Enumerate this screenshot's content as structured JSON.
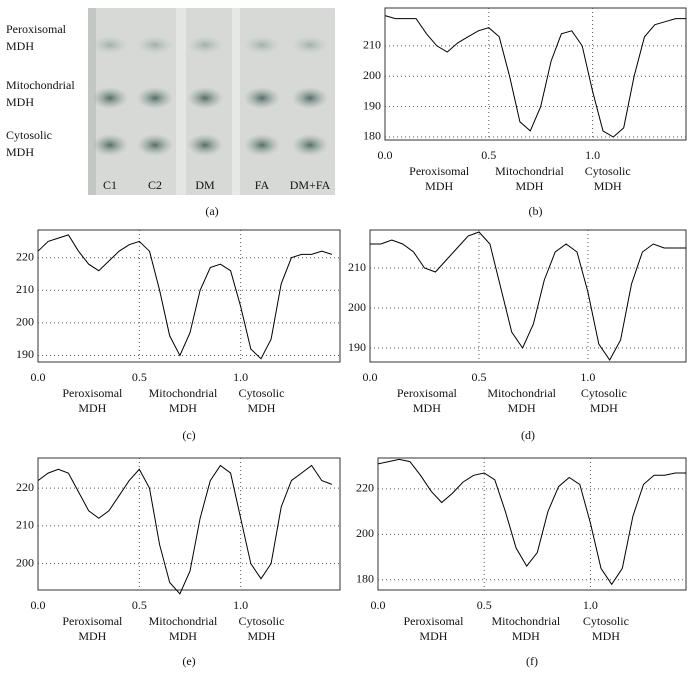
{
  "gel": {
    "row_labels": [
      [
        "Peroxisomal",
        "MDH"
      ],
      [
        "Mitochondrial",
        "MDH"
      ],
      [
        "Cytosolic",
        "MDH"
      ]
    ],
    "lanes": [
      "C1",
      "C2",
      "DM",
      "FA",
      "DM+FA"
    ],
    "caption": "(a)"
  },
  "chart_data": [
    {
      "type": "line",
      "caption": "(b)",
      "color": "#000000",
      "grid": true,
      "annotations": [
        [
          "Peroxisomal",
          "MDH"
        ],
        [
          "Mitochondrial",
          "MDH"
        ],
        [
          "Cytosolic",
          "MDH"
        ]
      ],
      "x": [
        0,
        0.05,
        0.1,
        0.15,
        0.2,
        0.25,
        0.3,
        0.35,
        0.4,
        0.45,
        0.5,
        0.55,
        0.6,
        0.65,
        0.7,
        0.75,
        0.8,
        0.85,
        0.9,
        0.95,
        1.0,
        1.05,
        1.1,
        1.15,
        1.2,
        1.25,
        1.3,
        1.35,
        1.4,
        1.45
      ],
      "values": [
        220,
        219,
        219,
        219,
        214,
        210,
        208,
        211,
        213,
        215,
        216,
        213,
        200,
        185,
        182,
        190,
        205,
        214,
        215,
        210,
        195,
        182,
        180,
        183,
        200,
        213,
        217,
        218,
        219,
        219
      ],
      "xlim": [
        0,
        1.45
      ],
      "ylim": [
        179,
        222.5
      ],
      "xticks": [
        {
          "value": 0,
          "label": "0.0"
        },
        0.5,
        {
          "value": 1,
          "label": "1.0"
        }
      ],
      "yticks": [
        180,
        190,
        200,
        210
      ]
    },
    {
      "type": "line",
      "caption": "(c)",
      "color": "#000000",
      "grid": true,
      "annotations": [
        [
          "Peroxisomal",
          "MDH"
        ],
        [
          "Mitochondrial",
          "MDH"
        ],
        [
          "Cytosolic",
          "MDH"
        ]
      ],
      "x": [
        0,
        0.05,
        0.1,
        0.15,
        0.2,
        0.25,
        0.3,
        0.35,
        0.4,
        0.45,
        0.5,
        0.55,
        0.6,
        0.65,
        0.7,
        0.75,
        0.8,
        0.85,
        0.9,
        0.95,
        1.0,
        1.05,
        1.1,
        1.15,
        1.2,
        1.25,
        1.3,
        1.35,
        1.4,
        1.45
      ],
      "values": [
        222,
        225,
        226,
        227,
        222,
        218,
        216,
        219,
        222,
        224,
        225,
        222,
        210,
        196,
        190,
        197,
        210,
        217,
        218,
        216,
        205,
        192,
        189,
        195,
        212,
        220,
        221,
        221,
        222,
        221
      ],
      "xlim": [
        0,
        1.49
      ],
      "ylim": [
        188,
        228.5
      ],
      "xticks": [
        {
          "value": 0,
          "label": "0.0"
        },
        0.5,
        {
          "value": 1,
          "label": "1.0"
        }
      ],
      "yticks": [
        190,
        200,
        210,
        220
      ]
    },
    {
      "type": "line",
      "caption": "(d)",
      "color": "#000000",
      "grid": true,
      "annotations": [
        [
          "Peroxisomal",
          "MDH"
        ],
        [
          "Mitochondrial",
          "MDH"
        ],
        [
          "Cytosolic",
          "MDH"
        ]
      ],
      "x": [
        0,
        0.05,
        0.1,
        0.15,
        0.2,
        0.25,
        0.3,
        0.35,
        0.4,
        0.45,
        0.5,
        0.55,
        0.6,
        0.65,
        0.7,
        0.75,
        0.8,
        0.85,
        0.9,
        0.95,
        1.0,
        1.05,
        1.1,
        1.15,
        1.2,
        1.25,
        1.3,
        1.35,
        1.4,
        1.45
      ],
      "values": [
        216,
        216,
        217,
        216,
        214,
        210,
        209,
        212,
        215,
        218,
        219,
        216,
        205,
        194,
        190,
        196,
        207,
        214,
        216,
        214,
        204,
        191,
        187,
        192,
        206,
        214,
        216,
        215,
        215,
        215
      ],
      "xlim": [
        0,
        1.45
      ],
      "ylim": [
        186.5,
        219.5
      ],
      "xticks": [
        {
          "value": 0,
          "label": "0.0"
        },
        0.5,
        {
          "value": 1,
          "label": "1.0"
        }
      ],
      "yticks": [
        190,
        200,
        210
      ]
    },
    {
      "type": "line",
      "caption": "(e)",
      "color": "#000000",
      "grid": true,
      "annotations": [
        [
          "Peroxisomal",
          "MDH"
        ],
        [
          "Mitochondrial",
          "MDH"
        ],
        [
          "Cytosolic",
          "MDH"
        ]
      ],
      "x": [
        0,
        0.05,
        0.1,
        0.15,
        0.2,
        0.25,
        0.3,
        0.35,
        0.4,
        0.45,
        0.5,
        0.55,
        0.6,
        0.65,
        0.7,
        0.75,
        0.8,
        0.85,
        0.9,
        0.95,
        1.0,
        1.05,
        1.1,
        1.15,
        1.2,
        1.25,
        1.3,
        1.35,
        1.4,
        1.45
      ],
      "values": [
        222,
        224,
        225,
        224,
        219,
        214,
        212,
        214,
        218,
        222,
        225,
        220,
        205,
        195,
        192,
        198,
        212,
        222,
        226,
        224,
        212,
        200,
        196,
        200,
        215,
        222,
        224,
        226,
        222,
        221
      ],
      "xlim": [
        0,
        1.49
      ],
      "ylim": [
        193,
        228
      ],
      "xticks": [
        {
          "value": 0,
          "label": "0.0"
        },
        0.5,
        {
          "value": 1,
          "label": "1.0"
        }
      ],
      "yticks": [
        200,
        210,
        220
      ]
    },
    {
      "type": "line",
      "caption": "(f)",
      "color": "#000000",
      "grid": true,
      "annotations": [
        [
          "Peroxisomal",
          "MDH"
        ],
        [
          "Mitochondrial",
          "MDH"
        ],
        [
          "Cytosolic",
          "MDH"
        ]
      ],
      "x": [
        0,
        0.05,
        0.1,
        0.15,
        0.2,
        0.25,
        0.3,
        0.35,
        0.4,
        0.45,
        0.5,
        0.55,
        0.6,
        0.65,
        0.7,
        0.75,
        0.8,
        0.85,
        0.9,
        0.95,
        1.0,
        1.05,
        1.1,
        1.15,
        1.2,
        1.25,
        1.3,
        1.35,
        1.4,
        1.45
      ],
      "values": [
        231,
        232,
        233,
        232,
        226,
        219,
        214,
        218,
        223,
        226,
        227,
        224,
        210,
        194,
        186,
        192,
        210,
        221,
        225,
        222,
        205,
        185,
        178,
        185,
        208,
        222,
        226,
        226,
        227,
        227
      ],
      "xlim": [
        0,
        1.45
      ],
      "ylim": [
        175.5,
        233.6
      ],
      "xticks": [
        {
          "value": 0,
          "label": "0.0"
        },
        0.5,
        {
          "value": 1,
          "label": "1.0"
        }
      ],
      "yticks": [
        180,
        200,
        220
      ]
    }
  ]
}
